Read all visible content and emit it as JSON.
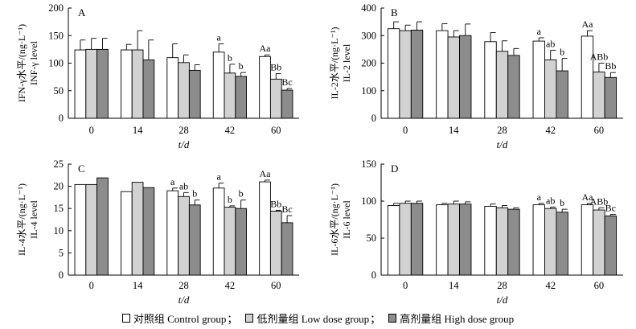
{
  "legend": {
    "items": [
      {
        "label": "对照组 Control group",
        "color": "#ffffff",
        "sep": "；"
      },
      {
        "label": "低剂量组 Low dose group",
        "color": "#d2d2d2",
        "sep": "；"
      },
      {
        "label": "高剂量组 High dose group",
        "color": "#8c8c8c",
        "sep": ""
      }
    ]
  },
  "chart_data": [
    {
      "type": "bar",
      "panel": "A",
      "ylabel_cn": "IFN-γ水平/(ng·L⁻¹)",
      "ylabel_en": "INF-γ level",
      "xlabel": "t/d",
      "categories": [
        "0",
        "14",
        "28",
        "42",
        "60"
      ],
      "ylim": [
        0,
        200
      ],
      "yticks": [
        0,
        50,
        100,
        150,
        200
      ],
      "series": [
        {
          "name": "Control group",
          "values": [
            124,
            124,
            110,
            120,
            112
          ],
          "errors": [
            18,
            10,
            25,
            15,
            3
          ]
        },
        {
          "name": "Low dose group",
          "values": [
            125,
            124,
            101,
            82,
            71
          ],
          "errors": [
            20,
            35,
            14,
            16,
            10
          ]
        },
        {
          "name": "High dose group",
          "values": [
            125,
            106,
            87,
            76,
            51
          ],
          "errors": [
            20,
            36,
            10,
            7,
            3
          ]
        }
      ],
      "annotations": [
        {
          "category": "42",
          "series": 0,
          "text": "a"
        },
        {
          "category": "42",
          "series": 1,
          "text": "b"
        },
        {
          "category": "42",
          "series": 2,
          "text": "b"
        },
        {
          "category": "60",
          "series": 0,
          "text": "Aa"
        },
        {
          "category": "60",
          "series": 1,
          "text": "Bb"
        },
        {
          "category": "60",
          "series": 2,
          "text": "Bc"
        }
      ]
    },
    {
      "type": "bar",
      "panel": "B",
      "ylabel_cn": "IL-2水平/(ng·L⁻¹)",
      "ylabel_en": "IL-2 level",
      "xlabel": "t/d",
      "categories": [
        "0",
        "14",
        "28",
        "42",
        "60"
      ],
      "ylim": [
        0,
        400
      ],
      "yticks": [
        0,
        100,
        200,
        300,
        400
      ],
      "series": [
        {
          "name": "Control group",
          "values": [
            325,
            318,
            278,
            280,
            298
          ],
          "errors": [
            25,
            25,
            33,
            12,
            20
          ]
        },
        {
          "name": "Low dose group",
          "values": [
            318,
            295,
            243,
            212,
            168
          ],
          "errors": [
            20,
            23,
            38,
            35,
            32
          ]
        },
        {
          "name": "High dose group",
          "values": [
            320,
            300,
            228,
            172,
            148
          ],
          "errors": [
            30,
            42,
            25,
            45,
            18
          ]
        }
      ],
      "annotations": [
        {
          "category": "42",
          "series": 0,
          "text": "a"
        },
        {
          "category": "42",
          "series": 1,
          "text": "ab"
        },
        {
          "category": "42",
          "series": 2,
          "text": "b"
        },
        {
          "category": "60",
          "series": 0,
          "text": "Aa"
        },
        {
          "category": "60",
          "series": 1,
          "text": "ABb"
        },
        {
          "category": "60",
          "series": 2,
          "text": "Bb"
        }
      ]
    },
    {
      "type": "bar",
      "panel": "C",
      "ylabel_cn": "IL-4水平/(ng·L⁻¹)",
      "ylabel_en": "IL-4 level",
      "xlabel": "t/d",
      "categories": [
        "0",
        "14",
        "28",
        "42",
        "60"
      ],
      "ylim": [
        0,
        25
      ],
      "yticks": [
        0,
        5,
        10,
        15,
        20,
        25
      ],
      "series": [
        {
          "name": "Control group",
          "values": [
            20.4,
            18.8,
            19.0,
            19.6,
            21.0
          ],
          "errors": [
            0,
            0,
            0.6,
            1.1,
            0.4
          ]
        },
        {
          "name": "Low dose group",
          "values": [
            20.4,
            20.9,
            17.7,
            15.3,
            14.4
          ],
          "errors": [
            0,
            0,
            0.9,
            0.3,
            0.2
          ]
        },
        {
          "name": "High dose group",
          "values": [
            21.9,
            19.7,
            15.8,
            15.0,
            11.8
          ],
          "errors": [
            0,
            0,
            1.1,
            1.9,
            1.6
          ]
        }
      ],
      "annotations": [
        {
          "category": "28",
          "series": 0,
          "text": "a"
        },
        {
          "category": "28",
          "series": 1,
          "text": "ab"
        },
        {
          "category": "28",
          "series": 2,
          "text": "b"
        },
        {
          "category": "42",
          "series": 0,
          "text": "a"
        },
        {
          "category": "42",
          "series": 1,
          "text": "b"
        },
        {
          "category": "42",
          "series": 2,
          "text": "b"
        },
        {
          "category": "60",
          "series": 0,
          "text": "Aa"
        },
        {
          "category": "60",
          "series": 1,
          "text": "Bb"
        },
        {
          "category": "60",
          "series": 2,
          "text": "Bc"
        }
      ]
    },
    {
      "type": "bar",
      "panel": "D",
      "ylabel_cn": "IL-6水平/(ng·L⁻¹)",
      "ylabel_en": "IL-6 level",
      "xlabel": "t/d",
      "categories": [
        "0",
        "14",
        "28",
        "42",
        "60"
      ],
      "ylim": [
        0,
        150
      ],
      "yticks": [
        0,
        50,
        100,
        150
      ],
      "series": [
        {
          "name": "Control group",
          "values": [
            94,
            95,
            93,
            95,
            95
          ],
          "errors": [
            3,
            2,
            3,
            2,
            2
          ]
        },
        {
          "name": "Low dose group",
          "values": [
            97,
            96,
            91,
            90,
            88
          ],
          "errors": [
            3,
            4,
            3,
            2,
            3
          ]
        },
        {
          "name": "High dose group",
          "values": [
            97,
            96,
            89,
            85,
            80
          ],
          "errors": [
            3,
            3,
            2,
            4,
            2
          ]
        }
      ],
      "annotations": [
        {
          "category": "42",
          "series": 0,
          "text": "a"
        },
        {
          "category": "42",
          "series": 1,
          "text": "ab"
        },
        {
          "category": "42",
          "series": 2,
          "text": "b"
        },
        {
          "category": "60",
          "series": 0,
          "text": "Aa"
        },
        {
          "category": "60",
          "series": 1,
          "text": "ABb"
        },
        {
          "category": "60",
          "series": 2,
          "text": "Bc"
        }
      ]
    }
  ]
}
